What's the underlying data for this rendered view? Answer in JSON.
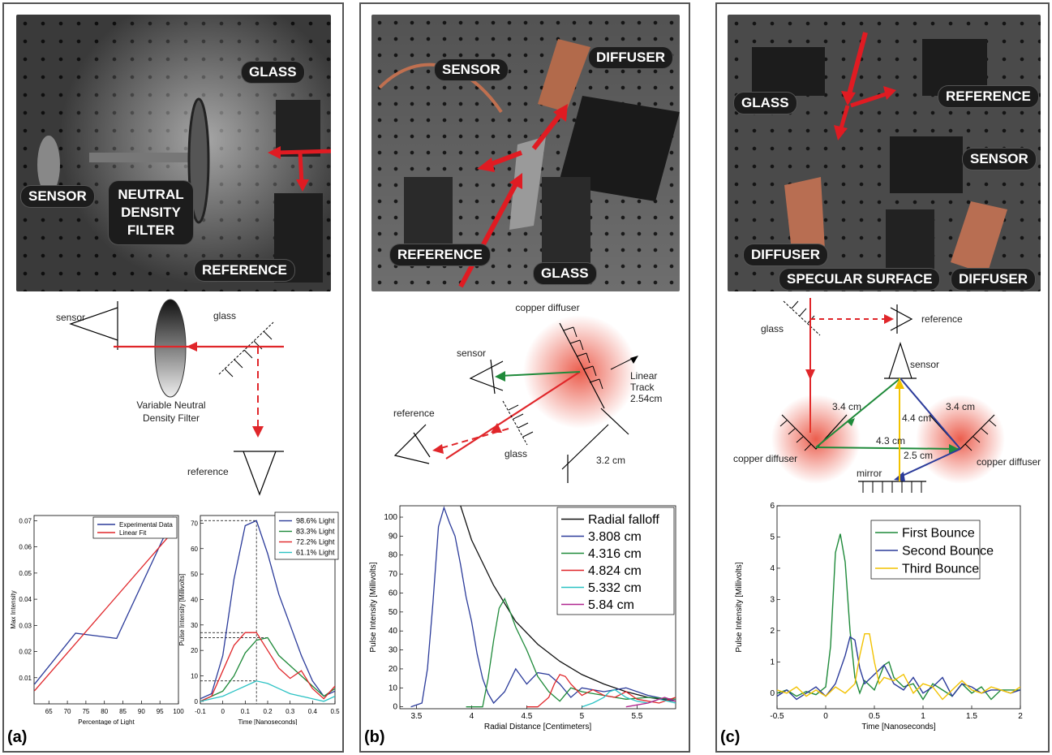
{
  "panel_a": {
    "label": "(a)",
    "photo_tags": {
      "glass": "GLASS",
      "sensor": "SENSOR",
      "filter": "NEUTRAL DENSITY FILTER",
      "reference": "REFERENCE"
    },
    "diagram": {
      "sensor": "sensor",
      "glass": "glass",
      "filter_line1": "Variable Neutral",
      "filter_line2": "Density Filter",
      "reference": "reference"
    }
  },
  "panel_b": {
    "label": "(b)",
    "photo_tags": {
      "sensor": "SENSOR",
      "diffuser": "DIFFUSER",
      "reference": "REFERENCE",
      "glass": "GLASS"
    },
    "diagram": {
      "copper": "copper diffuser",
      "sensor": "sensor",
      "linear_line1": "Linear",
      "linear_line2": "Track",
      "linear_line3": "2.54cm",
      "reference": "reference",
      "glass": "glass",
      "distance": "3.2 cm"
    }
  },
  "panel_c": {
    "label": "(c)",
    "photo_tags": {
      "glass": "GLASS",
      "reference": "REFERENCE",
      "sensor": "SENSOR",
      "diffuser_left": "DIFFUSER",
      "specular": "SPECULAR SURFACE",
      "diffuser_right": "DIFFUSER"
    },
    "diagram": {
      "glass": "glass",
      "reference": "reference",
      "sensor": "sensor",
      "d1": "3.4 cm",
      "d2": "3.4 cm",
      "d3": "4.4 cm",
      "d4": "4.3 cm",
      "d5": "2.5 cm",
      "copper_left": "copper diffuser",
      "copper_right": "copper diffuser",
      "mirror": "mirror"
    }
  },
  "colors": {
    "blue": "#2b3b9a",
    "red": "#e0262a",
    "green": "#1f8a3a",
    "cyan": "#2cc2c4",
    "magenta": "#b0268f",
    "yellow": "#f2c200",
    "black": "#111111"
  },
  "chart_data": [
    {
      "type": "line",
      "xlabel": "Percentage of Light",
      "ylabel": "Max Intensity",
      "xlim": [
        61,
        100
      ],
      "ylim": [
        0,
        0.072
      ],
      "xticks": [
        65,
        70,
        75,
        80,
        85,
        90,
        95,
        100
      ],
      "yticks": [
        0.01,
        0.02,
        0.03,
        0.04,
        0.05,
        0.06,
        0.07
      ],
      "xticklabels": [
        "65",
        "70",
        "75",
        "80",
        "85",
        "90",
        "95",
        "100"
      ],
      "yticklabels": [
        "0.01",
        "0.02",
        "0.03",
        "0.04",
        "0.05",
        "0.06",
        "0.07"
      ],
      "legend": [
        "Experimental Data",
        "Linear Fit"
      ],
      "series": [
        {
          "name": "Experimental Data",
          "color": "#2b3b9a",
          "x": [
            61.1,
            72.2,
            83.3,
            98.6
          ],
          "y": [
            0.0075,
            0.027,
            0.025,
            0.0715
          ]
        },
        {
          "name": "Linear Fit",
          "color": "#e0262a",
          "x": [
            61.1,
            98.6
          ],
          "y": [
            0.005,
            0.066
          ]
        }
      ]
    },
    {
      "type": "line",
      "xlabel": "Time [Nanoseconds]",
      "ylabel": "Pulse Intensity [Millivolts]",
      "xlim": [
        -0.1,
        0.5
      ],
      "ylim": [
        -1,
        73
      ],
      "xticks": [
        -0.1,
        0,
        0.1,
        0.2,
        0.3,
        0.4,
        0.5
      ],
      "yticks": [
        0,
        10,
        20,
        30,
        40,
        50,
        60,
        70
      ],
      "xticklabels": [
        "-0.1",
        "0",
        "0.1",
        "0.2",
        "0.3",
        "0.4",
        "0.5"
      ],
      "yticklabels": [
        "0",
        "10",
        "20",
        "30",
        "40",
        "50",
        "60",
        "70"
      ],
      "legend": [
        "98.6% Light",
        "83.3% Light",
        "72.2% Light",
        "61.1% Light"
      ],
      "series": [
        {
          "name": "98.6% Light",
          "color": "#2b3b9a",
          "x": [
            -0.1,
            -0.05,
            0,
            0.05,
            0.1,
            0.15,
            0.2,
            0.25,
            0.3,
            0.35,
            0.4,
            0.45,
            0.5
          ],
          "y": [
            1,
            3,
            18,
            48,
            69,
            71,
            58,
            42,
            30,
            18,
            8,
            2,
            4
          ]
        },
        {
          "name": "83.3% Light",
          "color": "#1f8a3a",
          "x": [
            -0.1,
            -0.05,
            0,
            0.05,
            0.1,
            0.15,
            0.2,
            0.25,
            0.3,
            0.35,
            0.4,
            0.45,
            0.5
          ],
          "y": [
            0,
            2,
            4,
            10,
            19,
            24,
            25,
            18,
            14,
            10,
            6,
            2,
            5
          ]
        },
        {
          "name": "72.2% Light",
          "color": "#e0262a",
          "x": [
            -0.1,
            -0.05,
            0,
            0.05,
            0.1,
            0.15,
            0.2,
            0.25,
            0.3,
            0.35,
            0.4,
            0.45,
            0.5
          ],
          "y": [
            0,
            2,
            12,
            22,
            27,
            27,
            20,
            13,
            9,
            12,
            5,
            1,
            6
          ]
        },
        {
          "name": "61.1% Light",
          "color": "#2cc2c4",
          "x": [
            -0.1,
            -0.05,
            0,
            0.05,
            0.1,
            0.15,
            0.2,
            0.25,
            0.3,
            0.35,
            0.4,
            0.45,
            0.5
          ],
          "y": [
            0,
            1,
            2,
            4,
            6,
            8,
            7,
            5,
            3,
            2,
            1,
            0,
            2
          ]
        }
      ]
    },
    {
      "type": "line",
      "xlabel": "Radial Distance [Centimeters]",
      "ylabel": "Pulse Intensity [Millivolts]",
      "xlim": [
        3.35,
        5.85
      ],
      "ylim": [
        -1,
        106
      ],
      "xticks": [
        3.5,
        4,
        4.5,
        5,
        5.5
      ],
      "yticks": [
        0,
        10,
        20,
        30,
        40,
        50,
        60,
        70,
        80,
        90,
        100
      ],
      "xticklabels": [
        "3.5",
        "4",
        "4.5",
        "5",
        "5.5"
      ],
      "yticklabels": [
        "0",
        "10",
        "20",
        "30",
        "40",
        "50",
        "60",
        "70",
        "80",
        "90",
        "100"
      ],
      "legend": [
        "Radial falloff",
        "3.808 cm",
        "4.316 cm",
        "4.824 cm",
        "5.332 cm",
        "5.84 cm"
      ],
      "series": [
        {
          "name": "Radial falloff",
          "color": "#111111",
          "x": [
            3.9,
            4.0,
            4.2,
            4.4,
            4.6,
            4.8,
            5.0,
            5.2,
            5.4,
            5.6,
            5.85
          ],
          "y": [
            106,
            88,
            64,
            45,
            33,
            24,
            17,
            12,
            8,
            5,
            3
          ]
        },
        {
          "name": "3.808 cm",
          "color": "#2b3b9a",
          "x": [
            3.45,
            3.55,
            3.6,
            3.65,
            3.7,
            3.75,
            3.8,
            3.85,
            3.9,
            3.95,
            4.0,
            4.05,
            4.1,
            4.15,
            4.2,
            4.3,
            4.4,
            4.5,
            4.6,
            4.7,
            4.8,
            4.9,
            5.0,
            5.2,
            5.4,
            5.6,
            5.85
          ],
          "y": [
            0,
            2,
            20,
            55,
            95,
            105,
            97,
            90,
            75,
            58,
            45,
            28,
            15,
            7,
            2,
            8,
            20,
            12,
            18,
            17,
            12,
            5,
            10,
            8,
            10,
            6,
            3
          ]
        },
        {
          "name": "4.316 cm",
          "color": "#1f8a3a",
          "x": [
            3.95,
            4.1,
            4.15,
            4.2,
            4.25,
            4.3,
            4.35,
            4.4,
            4.5,
            4.6,
            4.7,
            4.8,
            4.9,
            5.0,
            5.2,
            5.4,
            5.6,
            5.85
          ],
          "y": [
            0,
            0,
            15,
            35,
            52,
            57,
            50,
            42,
            30,
            16,
            8,
            3,
            10,
            8,
            6,
            4,
            5,
            4
          ]
        },
        {
          "name": "4.824 cm",
          "color": "#e0262a",
          "x": [
            4.5,
            4.6,
            4.7,
            4.75,
            4.8,
            4.85,
            4.9,
            5.0,
            5.1,
            5.2,
            5.3,
            5.4,
            5.5,
            5.6,
            5.7,
            5.85
          ],
          "y": [
            0,
            0,
            5,
            12,
            17,
            16,
            12,
            6,
            9,
            6,
            5,
            8,
            4,
            3,
            2,
            5
          ]
        },
        {
          "name": "5.332 cm",
          "color": "#2cc2c4",
          "x": [
            5.0,
            5.1,
            5.2,
            5.25,
            5.3,
            5.35,
            5.4,
            5.5,
            5.6,
            5.7,
            5.85
          ],
          "y": [
            0,
            2,
            5,
            8,
            9,
            7,
            5,
            3,
            2,
            4,
            2
          ]
        },
        {
          "name": "5.84 cm",
          "color": "#b0268f",
          "x": [
            5.4,
            5.5,
            5.6,
            5.7,
            5.75,
            5.8,
            5.85
          ],
          "y": [
            0,
            1,
            2,
            4,
            5,
            4,
            3
          ]
        }
      ]
    },
    {
      "type": "line",
      "xlabel": "Time [Nanoseconds]",
      "ylabel": "Pulse Intensity [Millivolts]",
      "xlim": [
        -0.5,
        2
      ],
      "ylim": [
        -0.5,
        6
      ],
      "xticks": [
        -0.5,
        0,
        0.5,
        1,
        1.5,
        2
      ],
      "yticks": [
        0,
        1,
        2,
        3,
        4,
        5,
        6
      ],
      "xticklabels": [
        "-0.5",
        "0",
        "0.5",
        "1",
        "1.5",
        "2"
      ],
      "yticklabels": [
        "0",
        "1",
        "2",
        "3",
        "4",
        "5",
        "6"
      ],
      "legend": [
        "First Bounce",
        "Second Bounce",
        "Third Bounce"
      ],
      "series": [
        {
          "name": "First Bounce",
          "color": "#1f8a3a",
          "x": [
            -0.5,
            -0.4,
            -0.3,
            -0.2,
            -0.1,
            0,
            0.05,
            0.1,
            0.15,
            0.2,
            0.25,
            0.3,
            0.35,
            0.4,
            0.5,
            0.6,
            0.65,
            0.7,
            0.8,
            0.9,
            1.0,
            1.1,
            1.2,
            1.3,
            1.4,
            1.5,
            1.6,
            1.7,
            1.8,
            1.9,
            2.0
          ],
          "y": [
            0,
            0.1,
            -0.1,
            0.05,
            -0.05,
            0.2,
            1.5,
            4.5,
            5.1,
            4.2,
            2.0,
            0.5,
            0.0,
            0.4,
            0.1,
            0.9,
            1.0,
            0.5,
            0.2,
            0.3,
            -0.2,
            0.3,
            0.1,
            -0.1,
            0.3,
            0.0,
            0.2,
            -0.2,
            0.1,
            0.1,
            0.1
          ]
        },
        {
          "name": "Second Bounce",
          "color": "#2b3b9a",
          "x": [
            -0.5,
            -0.4,
            -0.3,
            -0.2,
            -0.1,
            0,
            0.1,
            0.2,
            0.25,
            0.3,
            0.35,
            0.4,
            0.5,
            0.6,
            0.7,
            0.8,
            0.9,
            1.0,
            1.1,
            1.2,
            1.3,
            1.4,
            1.5,
            1.6,
            1.7,
            1.8,
            1.9,
            2.0
          ],
          "y": [
            -0.1,
            0.1,
            -0.2,
            0.0,
            0.2,
            -0.1,
            0.3,
            1.2,
            1.8,
            1.7,
            0.8,
            0.3,
            0.6,
            0.9,
            0.3,
            0.1,
            0.5,
            0.0,
            0.2,
            0.5,
            -0.1,
            0.3,
            0.2,
            0.0,
            0.1,
            0.1,
            0.0,
            0.1
          ]
        },
        {
          "name": "Third Bounce",
          "color": "#f2c200",
          "x": [
            -0.5,
            -0.4,
            -0.3,
            -0.2,
            -0.1,
            0,
            0.1,
            0.2,
            0.3,
            0.35,
            0.4,
            0.45,
            0.5,
            0.55,
            0.6,
            0.7,
            0.8,
            0.9,
            1.0,
            1.1,
            1.2,
            1.3,
            1.4,
            1.5,
            1.6,
            1.7,
            1.8,
            1.9,
            2.0
          ],
          "y": [
            0.1,
            0.0,
            0.2,
            -0.1,
            0.1,
            -0.1,
            0.2,
            0.0,
            0.3,
            1.2,
            1.9,
            1.9,
            1.0,
            0.3,
            0.5,
            0.4,
            0.6,
            0.0,
            0.3,
            0.2,
            -0.2,
            0.1,
            0.4,
            0.1,
            0.0,
            0.2,
            0.1,
            0.0,
            0.2
          ]
        }
      ]
    }
  ]
}
